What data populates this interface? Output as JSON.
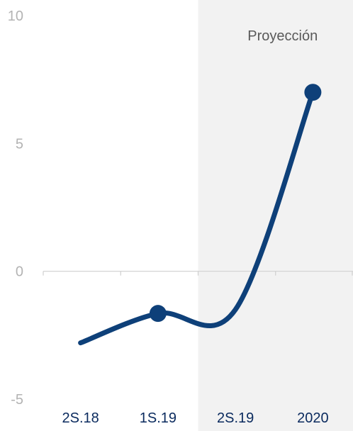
{
  "chart_data": {
    "type": "line",
    "title": "",
    "xlabel": "",
    "ylabel": "",
    "categories": [
      "2S.18",
      "1S.19",
      "2S.19",
      "2020"
    ],
    "x_ticks": [
      "2S.18",
      "1S.19",
      "2S.19",
      "2020"
    ],
    "y_ticks": [
      "10",
      "5",
      "0",
      "-5"
    ],
    "ylim": [
      -5,
      10
    ],
    "grid": false,
    "series": [
      {
        "values": [
          -2.8,
          -1.65,
          -1.5,
          7.0
        ]
      }
    ],
    "markers_on": [
      "1S.19",
      "2020"
    ],
    "projection": {
      "label": "Proyección",
      "from": "2S.19",
      "to": "2020"
    },
    "colors": {
      "line": "#0e4079",
      "marker": "#0e4079",
      "projection_bg": "#f2f2f2",
      "axis": "#cfcfcf",
      "y_tick_text": "#b3b3b3",
      "x_tick_text": "#0a2a5e",
      "projection_text": "#595959"
    }
  }
}
